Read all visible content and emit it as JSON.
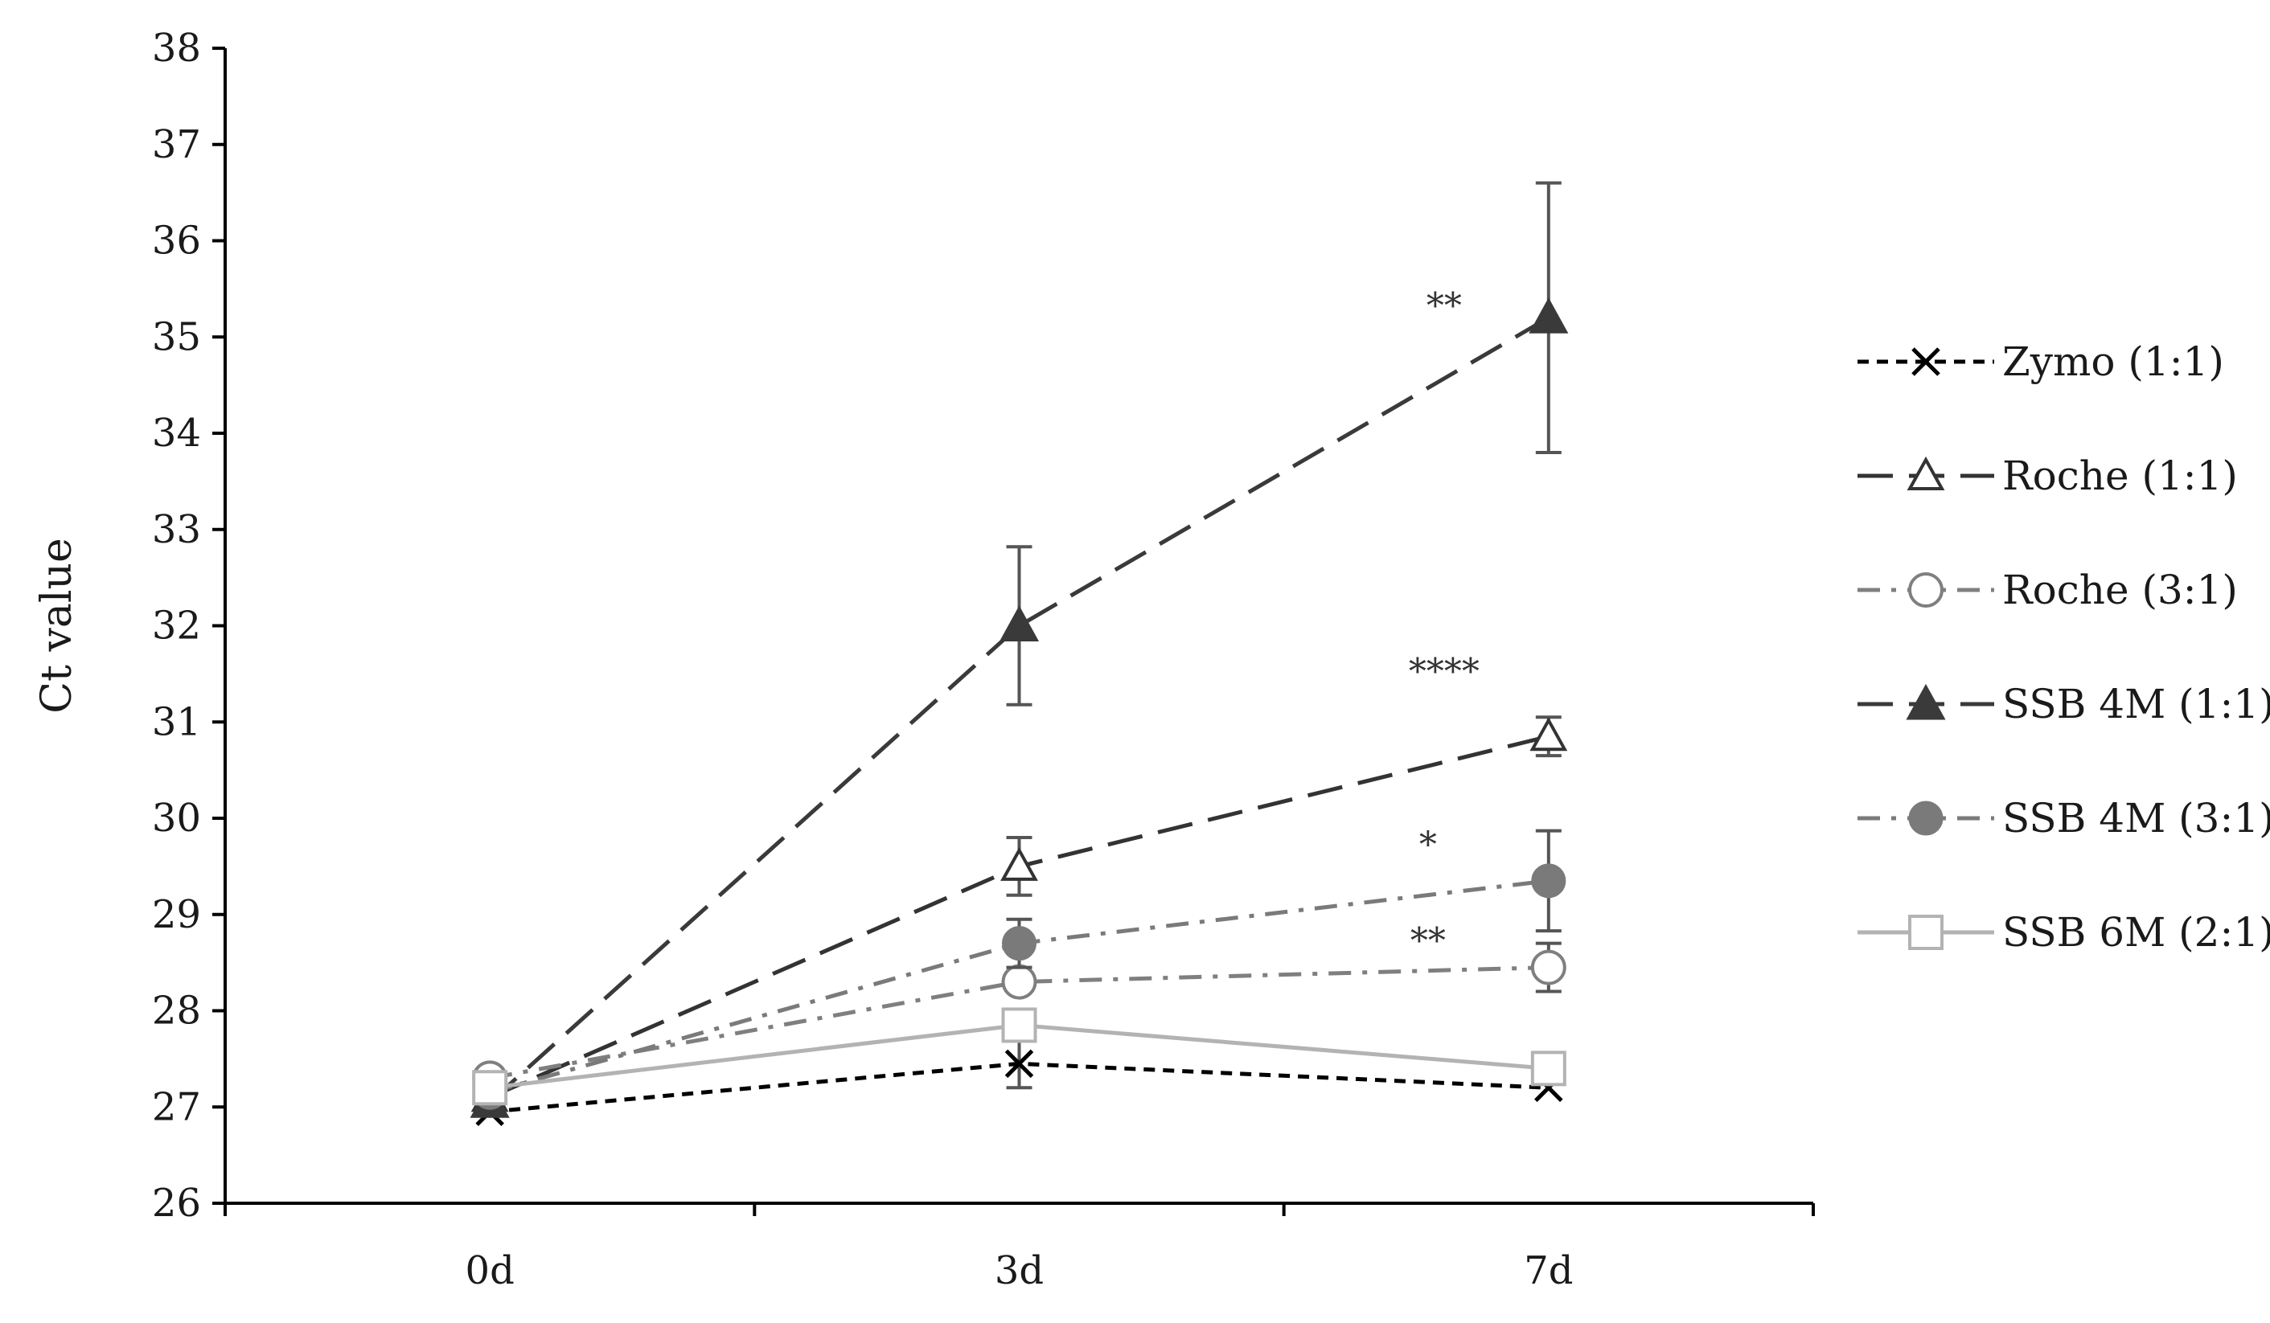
{
  "chart_data": {
    "type": "line",
    "title": "",
    "xlabel": "",
    "ylabel": "Ct value",
    "categories": [
      "0d",
      "3d",
      "7d"
    ],
    "ylim": [
      26,
      38
    ],
    "yticks": [
      26,
      27,
      28,
      29,
      30,
      31,
      32,
      33,
      34,
      35,
      36,
      37,
      38
    ],
    "grid": false,
    "legend_position": "right",
    "series": [
      {
        "name": "Zymo (1:1)",
        "values": [
          26.95,
          27.45,
          27.2
        ],
        "errors": [
          0,
          0.25,
          0
        ],
        "marker": "x",
        "dash": "short-dash",
        "color": "#000000"
      },
      {
        "name": "Roche (1:1)",
        "values": [
          27.1,
          29.5,
          30.85
        ],
        "errors": [
          0,
          0.3,
          0.2
        ],
        "marker": "triangle-open",
        "dash": "long-dash",
        "color": "#333333"
      },
      {
        "name": "Roche (3:1)",
        "values": [
          27.3,
          28.3,
          28.45
        ],
        "errors": [
          0,
          0,
          0.25
        ],
        "marker": "circle-open",
        "dash": "dash-dot",
        "color": "#7f7f7f"
      },
      {
        "name": "SSB 4M (1:1)",
        "values": [
          27.05,
          32.0,
          35.2
        ],
        "errors": [
          0,
          0.82,
          1.4
        ],
        "marker": "triangle-filled",
        "dash": "long-dash",
        "color": "#3a3a3a"
      },
      {
        "name": "SSB 4M (3:1)",
        "values": [
          27.15,
          28.7,
          29.35
        ],
        "errors": [
          0,
          0.25,
          0.52
        ],
        "marker": "circle-filled",
        "dash": "dash-dot",
        "color": "#7a7a7a"
      },
      {
        "name": "SSB 6M (2:1)",
        "values": [
          27.2,
          27.85,
          27.4
        ],
        "errors": [
          0,
          0,
          0
        ],
        "marker": "square-open",
        "dash": "solid",
        "color": "#b3b3b3"
      }
    ],
    "annotations": [
      {
        "text": "**",
        "x": "7d",
        "y": 35.2
      },
      {
        "text": "****",
        "x": "7d",
        "y": 31.4
      },
      {
        "text": "*",
        "x": "7d",
        "y": 29.6
      },
      {
        "text": "**",
        "x": "7d",
        "y": 28.6
      }
    ]
  }
}
